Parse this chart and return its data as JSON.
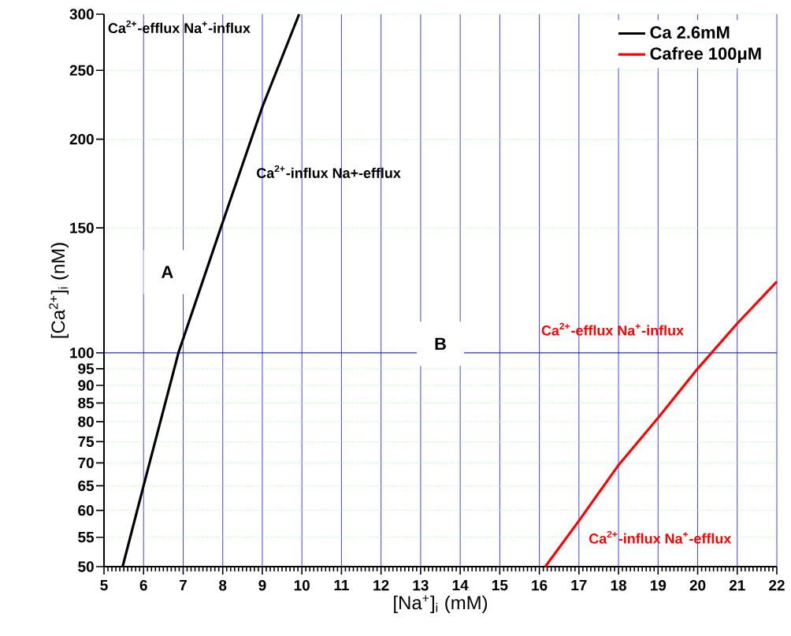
{
  "chart_data": {
    "type": "line",
    "log": true,
    "grid": true,
    "legend": "top right",
    "line_style": "solid",
    "xlabel": "[Na$^{+}$]$_{i}$ (mM)",
    "ylabel": "[Ca$^{2+}$]$_{i}$ (nM)",
    "xlim": [
      5,
      22
    ],
    "ylim": [
      50,
      300
    ],
    "xticks": [
      5,
      6,
      7,
      8,
      9,
      10,
      11,
      12,
      13,
      14,
      15,
      16,
      17,
      18,
      19,
      20,
      21,
      22
    ],
    "yticks": [
      50,
      55,
      60,
      65,
      70,
      75,
      80,
      85,
      90,
      95,
      100,
      150,
      200,
      250,
      300
    ],
    "series": [
      {
        "name": "Ca 2.6mM",
        "color": "#000000",
        "x": [
          5.47,
          6,
          6.88,
          7.95,
          9,
          9.93
        ],
        "values": [
          50,
          65,
          100,
          150,
          222,
          300
        ]
      },
      {
        "name": "Cafree 100μM",
        "color": "#ff0000",
        "x": [
          16.15,
          17,
          18,
          19,
          20,
          21,
          22
        ],
        "values": [
          50,
          58,
          69.5,
          81,
          95,
          110,
          126
        ]
      }
    ],
    "ref_lines": [
      {
        "axis": "y",
        "value": 100,
        "color": "#0000ff"
      }
    ],
    "annotations": [
      "Ca$^{2+}$-efflux Na$^{+}$-influx",
      "Ca$^{2+}$-influx Na+-efflux",
      "Ca$^{2+}$-efflux Na$^{+}$-influx",
      "Ca$^{2+}$-influx Na$^{+}$-efflux",
      "A",
      "B"
    ]
  }
}
